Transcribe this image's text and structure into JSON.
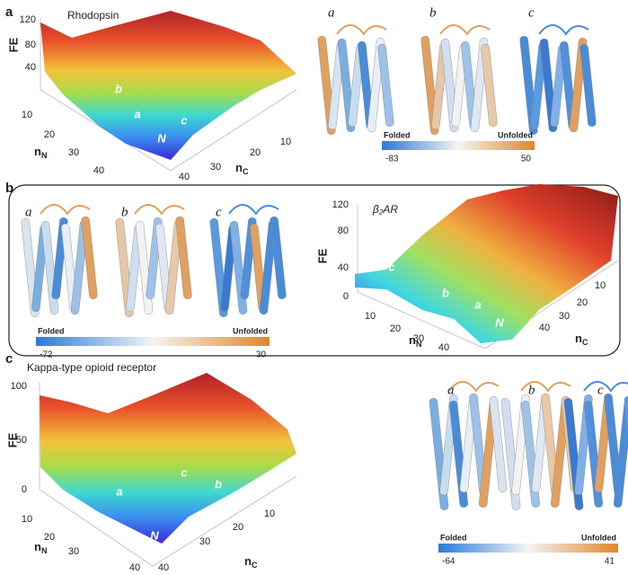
{
  "panels": [
    {
      "label": "a",
      "surface": {
        "title": "Rhodopsin",
        "z_label": "FE",
        "z_ticks": [
          120,
          80,
          40
        ],
        "x_label": {
          "base": "n",
          "sub": "N"
        },
        "x_ticks": [
          10,
          20,
          30,
          40
        ],
        "y_label": {
          "base": "n",
          "sub": "C"
        },
        "y_ticks": [
          10,
          20,
          30,
          40
        ],
        "minima": [
          "b",
          "a",
          "c",
          "N"
        ]
      },
      "structures": [
        "a",
        "b",
        "c"
      ],
      "colorbar": {
        "low_label": "Folded",
        "high_label": "Unfolded",
        "min": -83,
        "max": 50
      }
    },
    {
      "label": "b",
      "surface": {
        "title": "β₂AR",
        "z_label": "FE",
        "z_ticks": [
          120,
          80,
          40,
          0
        ],
        "x_label": {
          "base": "n",
          "sub": "N"
        },
        "x_ticks": [
          10,
          20,
          30,
          40
        ],
        "y_label": {
          "base": "n",
          "sub": "C"
        },
        "y_ticks": [
          10,
          20,
          30,
          40
        ],
        "minima": [
          "c",
          "b",
          "a",
          "N"
        ]
      },
      "structures": [
        "a",
        "b",
        "c"
      ],
      "colorbar": {
        "low_label": "Folded",
        "high_label": "Unfolded",
        "min": -72,
        "max": 30
      }
    },
    {
      "label": "c",
      "surface": {
        "title": "Kappa-type opioid receptor",
        "z_label": "FE",
        "z_ticks": [
          100,
          50,
          0
        ],
        "x_label": {
          "base": "n",
          "sub": "N"
        },
        "x_ticks": [
          10,
          20,
          30,
          40
        ],
        "y_label": {
          "base": "n",
          "sub": "C"
        },
        "y_ticks": [
          10,
          20,
          30,
          40
        ],
        "minima": [
          "a",
          "c",
          "b",
          "N"
        ]
      },
      "structures": [
        "a",
        "b",
        "c"
      ],
      "colorbar": {
        "low_label": "Folded",
        "high_label": "Unfolded",
        "min": -64,
        "max": 41
      }
    }
  ]
}
